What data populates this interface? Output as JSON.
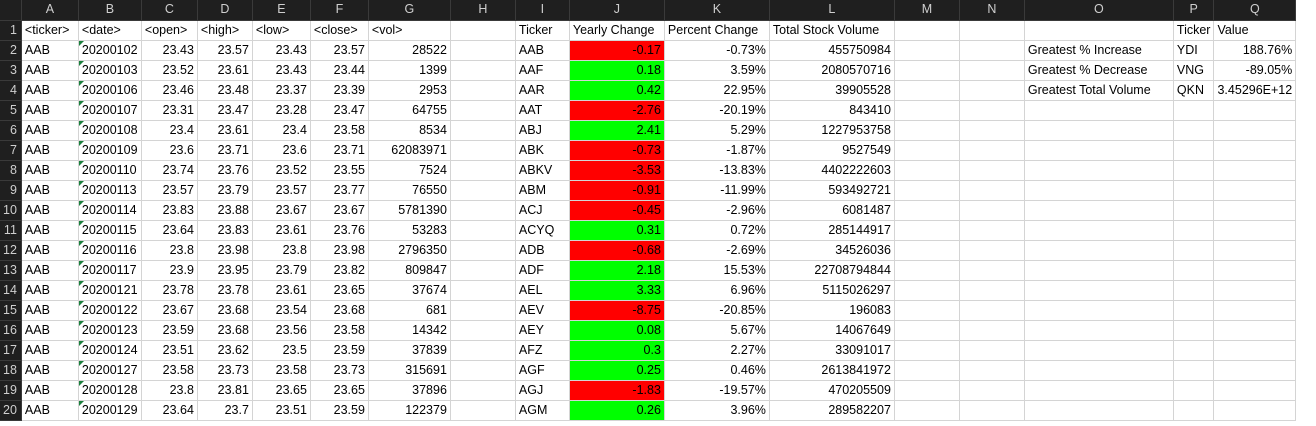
{
  "columns": [
    "A",
    "B",
    "C",
    "D",
    "E",
    "F",
    "G",
    "H",
    "I",
    "J",
    "K",
    "L",
    "M",
    "N",
    "O",
    "P",
    "Q"
  ],
  "rows": [
    [
      "1",
      "<ticker>",
      "<date>",
      "<open>",
      "<high>",
      "<low>",
      "<close>",
      "<vol>",
      "",
      "Ticker",
      "Yearly Change",
      "Percent Change",
      "Total Stock Volume",
      "",
      "",
      "",
      "Ticker",
      "Value"
    ],
    [
      "2",
      "AAB",
      "20200102",
      "23.43",
      "23.57",
      "23.43",
      "23.57",
      "28522",
      "",
      "AAB",
      "-0.17",
      "-0.73%",
      "455750984",
      "",
      "",
      "Greatest % Increase",
      "YDI",
      "188.76%"
    ],
    [
      "3",
      "AAB",
      "20200103",
      "23.52",
      "23.61",
      "23.43",
      "23.44",
      "1399",
      "",
      "AAF",
      "0.18",
      "3.59%",
      "2080570716",
      "",
      "",
      "Greatest % Decrease",
      "VNG",
      "-89.05%"
    ],
    [
      "4",
      "AAB",
      "20200106",
      "23.46",
      "23.48",
      "23.37",
      "23.39",
      "2953",
      "",
      "AAR",
      "0.42",
      "22.95%",
      "39905528",
      "",
      "",
      "Greatest Total Volume",
      "QKN",
      "3.45296E+12"
    ],
    [
      "5",
      "AAB",
      "20200107",
      "23.31",
      "23.47",
      "23.28",
      "23.47",
      "64755",
      "",
      "AAT",
      "-2.76",
      "-20.19%",
      "843410",
      "",
      "",
      "",
      "",
      ""
    ],
    [
      "6",
      "AAB",
      "20200108",
      "23.4",
      "23.61",
      "23.4",
      "23.58",
      "8534",
      "",
      "ABJ",
      "2.41",
      "5.29%",
      "1227953758",
      "",
      "",
      "",
      "",
      ""
    ],
    [
      "7",
      "AAB",
      "20200109",
      "23.6",
      "23.71",
      "23.6",
      "23.71",
      "62083971",
      "",
      "ABK",
      "-0.73",
      "-1.87%",
      "9527549",
      "",
      "",
      "",
      "",
      ""
    ],
    [
      "8",
      "AAB",
      "20200110",
      "23.74",
      "23.76",
      "23.52",
      "23.55",
      "7524",
      "",
      "ABKV",
      "-3.53",
      "-13.83%",
      "4402222603",
      "",
      "",
      "",
      "",
      ""
    ],
    [
      "9",
      "AAB",
      "20200113",
      "23.57",
      "23.79",
      "23.57",
      "23.77",
      "76550",
      "",
      "ABM",
      "-0.91",
      "-11.99%",
      "593492721",
      "",
      "",
      "",
      "",
      ""
    ],
    [
      "10",
      "AAB",
      "20200114",
      "23.83",
      "23.88",
      "23.67",
      "23.67",
      "5781390",
      "",
      "ACJ",
      "-0.45",
      "-2.96%",
      "6081487",
      "",
      "",
      "",
      "",
      ""
    ],
    [
      "11",
      "AAB",
      "20200115",
      "23.64",
      "23.83",
      "23.61",
      "23.76",
      "53283",
      "",
      "ACYQ",
      "0.31",
      "0.72%",
      "285144917",
      "",
      "",
      "",
      "",
      ""
    ],
    [
      "12",
      "AAB",
      "20200116",
      "23.8",
      "23.98",
      "23.8",
      "23.98",
      "2796350",
      "",
      "ADB",
      "-0.68",
      "-2.69%",
      "34526036",
      "",
      "",
      "",
      "",
      ""
    ],
    [
      "13",
      "AAB",
      "20200117",
      "23.9",
      "23.95",
      "23.79",
      "23.82",
      "809847",
      "",
      "ADF",
      "2.18",
      "15.53%",
      "22708794844",
      "",
      "",
      "",
      "",
      ""
    ],
    [
      "14",
      "AAB",
      "20200121",
      "23.78",
      "23.78",
      "23.61",
      "23.65",
      "37674",
      "",
      "AEL",
      "3.33",
      "6.96%",
      "5115026297",
      "",
      "",
      "",
      "",
      ""
    ],
    [
      "15",
      "AAB",
      "20200122",
      "23.67",
      "23.68",
      "23.54",
      "23.68",
      "681",
      "",
      "AEV",
      "-8.75",
      "-20.85%",
      "196083",
      "",
      "",
      "",
      "",
      ""
    ],
    [
      "16",
      "AAB",
      "20200123",
      "23.59",
      "23.68",
      "23.56",
      "23.58",
      "14342",
      "",
      "AEY",
      "0.08",
      "5.67%",
      "14067649",
      "",
      "",
      "",
      "",
      ""
    ],
    [
      "17",
      "AAB",
      "20200124",
      "23.51",
      "23.62",
      "23.5",
      "23.59",
      "37839",
      "",
      "AFZ",
      "0.3",
      "2.27%",
      "33091017",
      "",
      "",
      "",
      "",
      ""
    ],
    [
      "18",
      "AAB",
      "20200127",
      "23.58",
      "23.73",
      "23.58",
      "23.73",
      "315691",
      "",
      "AGF",
      "0.25",
      "0.46%",
      "2613841972",
      "",
      "",
      "",
      "",
      ""
    ],
    [
      "19",
      "AAB",
      "20200128",
      "23.8",
      "23.81",
      "23.65",
      "23.65",
      "37896",
      "",
      "AGJ",
      "-1.83",
      "-19.57%",
      "470205509",
      "",
      "",
      "",
      "",
      ""
    ],
    [
      "20",
      "AAB",
      "20200129",
      "23.64",
      "23.7",
      "23.51",
      "23.59",
      "122379",
      "",
      "AGM",
      "0.26",
      "3.96%",
      "289582207",
      "",
      "",
      "",
      "",
      ""
    ]
  ],
  "colors": {
    "positive_fill": "#00ff00",
    "negative_fill": "#ff0000",
    "header_bg": "#1f1f1f"
  }
}
